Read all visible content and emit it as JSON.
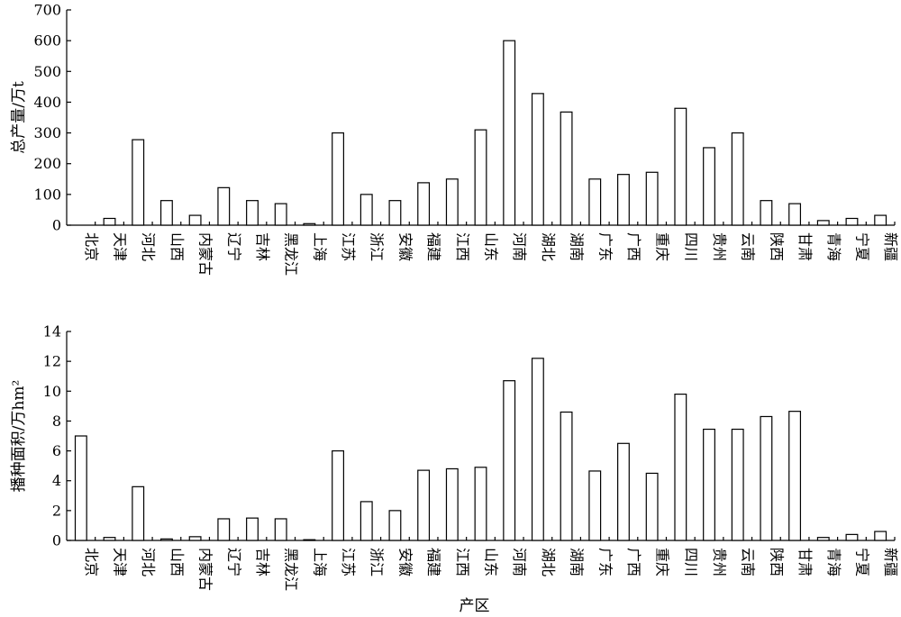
{
  "chart_data": [
    {
      "type": "bar",
      "ylabel": "总产量/万t",
      "xlabel": "",
      "ylim": [
        0,
        700
      ],
      "yticks": [
        0,
        100,
        200,
        300,
        400,
        500,
        600,
        700
      ],
      "grid": false,
      "categories": [
        "北京",
        "天津",
        "河北",
        "山西",
        "内蒙古",
        "辽宁",
        "吉林",
        "黑龙江",
        "上海",
        "江苏",
        "浙江",
        "安徽",
        "福建",
        "江西",
        "山东",
        "河南",
        "湖北",
        "湖南",
        "广东",
        "广西",
        "重庆",
        "四川",
        "贵州",
        "云南",
        "陕西",
        "甘肃",
        "青海",
        "宁夏",
        "新疆"
      ],
      "values": [
        0,
        22,
        278,
        80,
        32,
        122,
        80,
        70,
        5,
        300,
        100,
        80,
        138,
        150,
        310,
        600,
        428,
        368,
        150,
        165,
        172,
        380,
        252,
        300,
        80,
        70,
        15,
        22,
        32
      ]
    },
    {
      "type": "bar",
      "ylabel": "播种面积/万hm²",
      "xlabel": "产区",
      "ylim": [
        0,
        14
      ],
      "yticks": [
        0,
        2,
        4,
        6,
        8,
        10,
        12,
        14
      ],
      "grid": false,
      "categories": [
        "北京",
        "天津",
        "河北",
        "山西",
        "内蒙古",
        "辽宁",
        "吉林",
        "黑龙江",
        "上海",
        "江苏",
        "浙江",
        "安徽",
        "福建",
        "江西",
        "山东",
        "河南",
        "湖北",
        "湖南",
        "广东",
        "广西",
        "重庆",
        "四川",
        "贵州",
        "云南",
        "陕西",
        "甘肃",
        "青海",
        "宁夏",
        "新疆"
      ],
      "values": [
        7.0,
        0.2,
        3.6,
        0.1,
        0.25,
        1.45,
        1.5,
        1.45,
        0.05,
        6.0,
        2.6,
        2.0,
        4.7,
        4.8,
        4.9,
        10.7,
        12.2,
        8.6,
        4.65,
        6.5,
        4.5,
        9.8,
        7.45,
        7.45,
        8.3,
        8.65,
        0.2,
        0.4,
        0.6
      ]
    }
  ]
}
